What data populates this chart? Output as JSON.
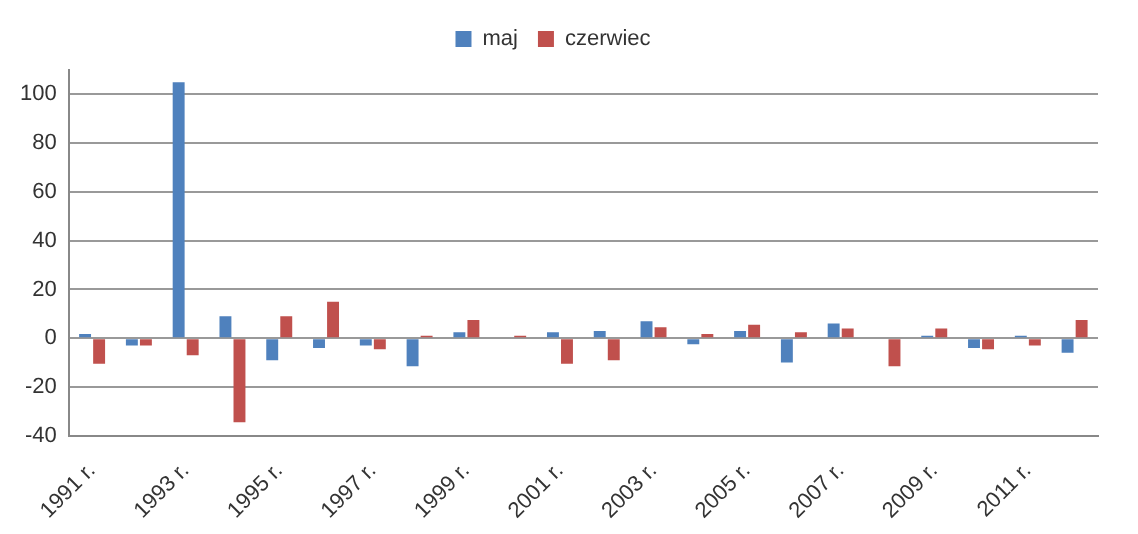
{
  "chart_data": {
    "type": "bar",
    "categories": [
      "1991 r.",
      null,
      "1993 r.",
      null,
      "1995 r.",
      null,
      "1997 r.",
      null,
      "1999 r.",
      null,
      "2001 r.",
      null,
      "2003 r.",
      null,
      "2005 r.",
      null,
      "2007 r.",
      null,
      "2009 r.",
      null,
      "2011 r.",
      null
    ],
    "series": [
      {
        "name": "maj",
        "color": "#4f81bd",
        "values": [
          1.7,
          -3,
          105,
          9,
          -9,
          -4,
          -3,
          -11.5,
          2.5,
          0,
          2.5,
          3,
          7,
          -2.5,
          3,
          -10,
          6,
          0,
          1,
          -4,
          1,
          -6
        ]
      },
      {
        "name": "czerwiec",
        "color": "#c0504d",
        "values": [
          -10.5,
          -3,
          -7,
          -34.5,
          9,
          15,
          -4.5,
          1,
          7.5,
          1,
          -10.5,
          -9,
          4.5,
          1.7,
          5.5,
          2.5,
          4,
          -11.5,
          4,
          -4.5,
          -3,
          7.5
        ]
      }
    ],
    "ylim": [
      -40,
      110
    ],
    "yticks": [
      -40,
      -20,
      0,
      20,
      40,
      60,
      80,
      100
    ],
    "grid": "y",
    "legend": "top"
  }
}
